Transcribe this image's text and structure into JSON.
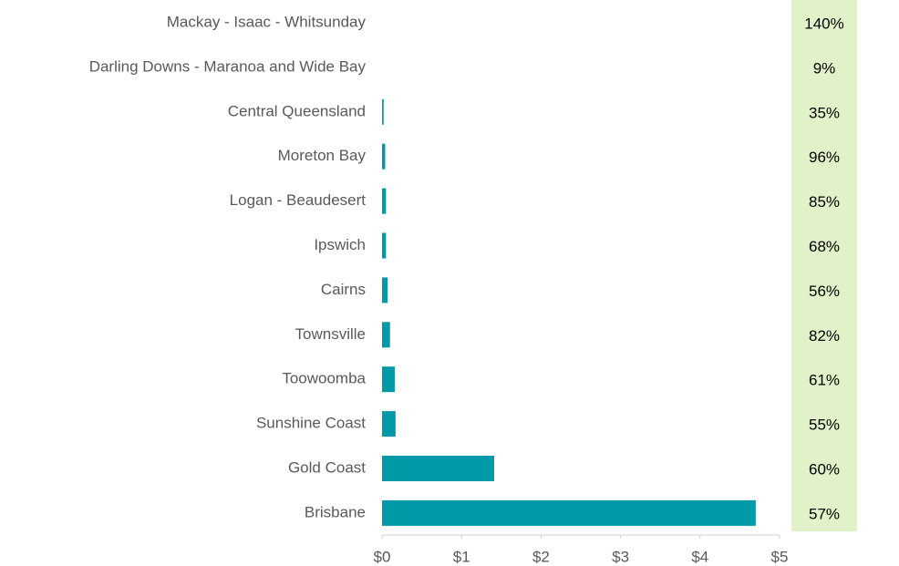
{
  "chart_data": {
    "type": "barh",
    "categories": [
      "Mackay - Isaac - Whitsunday",
      "Darling Downs - Maranoa and Wide Bay",
      "Central Queensland",
      "Moreton Bay",
      "Logan - Beaudesert",
      "Ipswich",
      "Cairns",
      "Townsville",
      "Toowoomba",
      "Sunshine Coast",
      "Gold Coast",
      "Brisbane"
    ],
    "values": [
      0,
      0,
      0.02,
      0.04,
      0.05,
      0.05,
      0.07,
      0.1,
      0.16,
      0.17,
      1.41,
      4.7
    ],
    "color": "#0099a8",
    "xlim": [
      0,
      5
    ],
    "xticks": [
      {
        "value": 0,
        "label": "$0"
      },
      {
        "value": 1,
        "label": "$1"
      },
      {
        "value": 2,
        "label": "$2"
      },
      {
        "value": 3,
        "label": "$3"
      },
      {
        "value": 4,
        "label": "$4"
      },
      {
        "value": 5,
        "label": "$5"
      }
    ],
    "side_column": {
      "values": [
        140,
        9,
        35,
        96,
        85,
        68,
        56,
        82,
        61,
        55,
        60,
        57
      ],
      "value_labels": [
        "140%",
        "9%",
        "35%",
        "96%",
        "85%",
        "68%",
        "56%",
        "82%",
        "61%",
        "55%",
        "60%",
        "57%"
      ],
      "color": "#e2f2c8"
    }
  }
}
